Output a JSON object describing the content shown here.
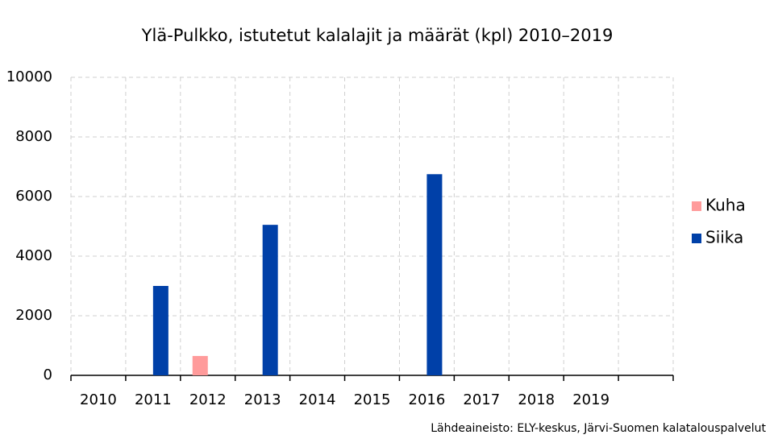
{
  "chart_data": {
    "type": "bar",
    "title": "Ylä-Pulkko, istutetut kalalajit ja määrät (kpl) 2010–2019",
    "source": "Lähdeaineisto: ELY-keskus, Järvi-Suomen kalatalouspalvelut",
    "categories": [
      "2010",
      "2011",
      "2012",
      "2013",
      "2014",
      "2015",
      "2016",
      "2017",
      "2018",
      "2019",
      null
    ],
    "series": [
      {
        "name": "Kuha",
        "color": "#ff9b9b",
        "values": [
          null,
          null,
          650,
          null,
          null,
          null,
          null,
          null,
          null,
          null,
          null
        ]
      },
      {
        "name": "Siika",
        "color": "#0040a8",
        "values": [
          null,
          3000,
          null,
          5050,
          null,
          null,
          6750,
          null,
          null,
          null,
          null
        ]
      }
    ],
    "ylim": [
      0,
      10000
    ],
    "yticks": [
      0,
      2000,
      4000,
      6000,
      8000,
      10000
    ],
    "grid": true,
    "legend": "right"
  }
}
